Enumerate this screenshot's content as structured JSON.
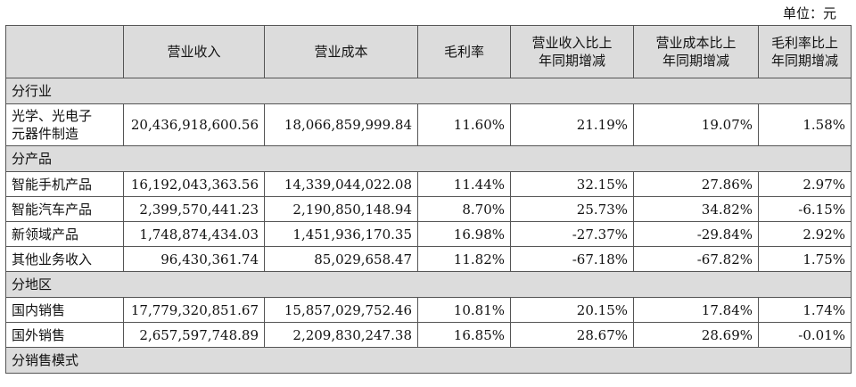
{
  "unit_label": "单位：元",
  "headers": [
    "",
    "营业收入",
    "营业成本",
    "毛利率",
    "营业收入比上年同期增减",
    "营业成本比上年同期增减",
    "毛利率比上年同期增减"
  ],
  "header_lines": [
    [
      ""
    ],
    [
      "营业收入"
    ],
    [
      "营业成本"
    ],
    [
      "毛利率"
    ],
    [
      "营业收入比上",
      "年同期增减"
    ],
    [
      "营业成本比上",
      "年同期增减"
    ],
    [
      "毛利率比上",
      "年同期增减"
    ]
  ],
  "rows": [
    {
      "type": "section",
      "label": "分行业"
    },
    {
      "type": "data",
      "label_lines": [
        "光学、光电子",
        "元器件制造"
      ],
      "revenue": "20,436,918,600.56",
      "cost": "18,066,859,999.84",
      "gross_margin": "11.60%",
      "revenue_yoy": "21.19%",
      "cost_yoy": "19.07%",
      "margin_yoy": "1.58%"
    },
    {
      "type": "section",
      "label": "分产品"
    },
    {
      "type": "data",
      "label_lines": [
        "智能手机产品"
      ],
      "revenue": "16,192,043,363.56",
      "cost": "14,339,044,022.08",
      "gross_margin": "11.44%",
      "revenue_yoy": "32.15%",
      "cost_yoy": "27.86%",
      "margin_yoy": "2.97%"
    },
    {
      "type": "data",
      "label_lines": [
        "智能汽车产品"
      ],
      "revenue": "2,399,570,441.23",
      "cost": "2,190,850,148.94",
      "gross_margin": "8.70%",
      "revenue_yoy": "25.73%",
      "cost_yoy": "34.82%",
      "margin_yoy": "-6.15%"
    },
    {
      "type": "data",
      "label_lines": [
        "新领域产品"
      ],
      "revenue": "1,748,874,434.03",
      "cost": "1,451,936,170.35",
      "gross_margin": "16.98%",
      "revenue_yoy": "-27.37%",
      "cost_yoy": "-29.84%",
      "margin_yoy": "2.92%"
    },
    {
      "type": "data",
      "label_lines": [
        "其他业务收入"
      ],
      "revenue": "96,430,361.74",
      "cost": "85,029,658.47",
      "gross_margin": "11.82%",
      "revenue_yoy": "-67.18%",
      "cost_yoy": "-67.82%",
      "margin_yoy": "1.75%"
    },
    {
      "type": "section",
      "label": "分地区"
    },
    {
      "type": "data",
      "label_lines": [
        "国内销售"
      ],
      "revenue": "17,779,320,851.67",
      "cost": "15,857,029,752.46",
      "gross_margin": "10.81%",
      "revenue_yoy": "20.15%",
      "cost_yoy": "17.84%",
      "margin_yoy": "1.74%"
    },
    {
      "type": "data",
      "label_lines": [
        "国外销售"
      ],
      "revenue": "2,657,597,748.89",
      "cost": "2,209,830,247.38",
      "gross_margin": "16.85%",
      "revenue_yoy": "28.67%",
      "cost_yoy": "28.69%",
      "margin_yoy": "-0.01%"
    },
    {
      "type": "section",
      "label": "分销售模式"
    }
  ]
}
